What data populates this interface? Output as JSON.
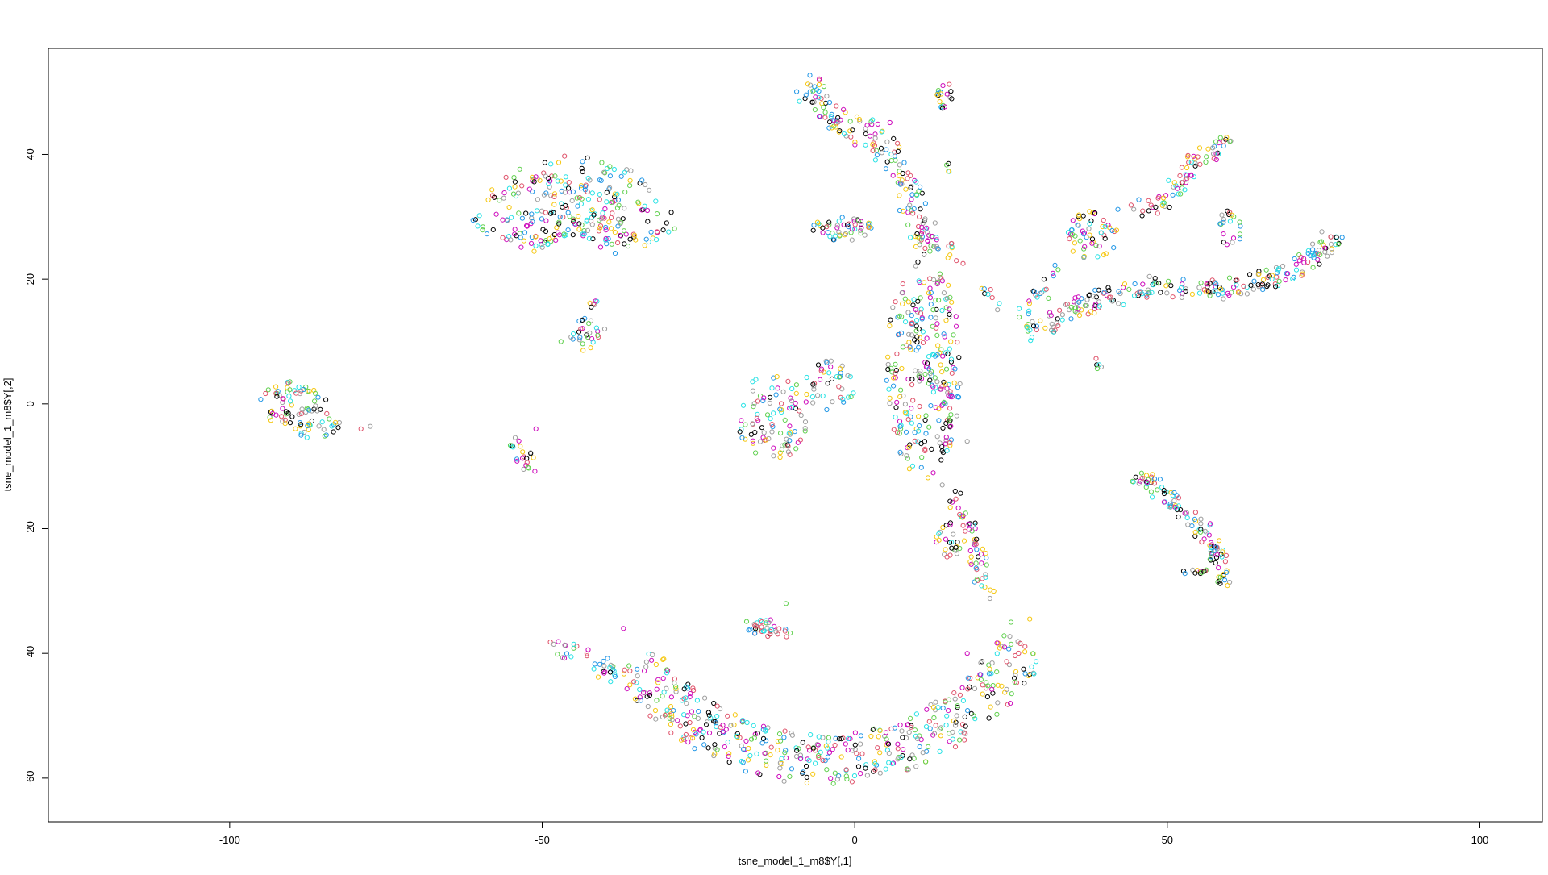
{
  "chart_data": {
    "type": "scatter",
    "title": "",
    "xlabel": "tsne_model_1_m8$Y[,1]",
    "ylabel": "tsne_model_1_m8$Y[,2]",
    "xlim": [
      -129,
      110
    ],
    "ylim": [
      -67,
      57
    ],
    "xticks": [
      -100,
      -50,
      0,
      50,
      100
    ],
    "yticks": [
      -60,
      -40,
      -20,
      0,
      20,
      40
    ],
    "xtick_labels": [
      "-100",
      "-50",
      "0",
      "50",
      "100"
    ],
    "ytick_labels": [
      "-60",
      "-40",
      "-20",
      "0",
      "20",
      "40"
    ],
    "grid": false,
    "legend": "none",
    "marker": "open-circle",
    "colors": [
      "#000000",
      "#DF536B",
      "#61D04F",
      "#2297E6",
      "#28E2E5",
      "#CD0BBC",
      "#F5C710",
      "#9E9E9E"
    ],
    "clusters": [
      {
        "shape": "blob",
        "cx": -89,
        "cy": -1,
        "rx": 7,
        "ry": 4,
        "angle": -25,
        "n": 90
      },
      {
        "shape": "points",
        "pts": [
          [
            -79,
            -4
          ],
          [
            -77.5,
            -3.6
          ]
        ]
      },
      {
        "shape": "arc",
        "cx": -45,
        "cy": 22,
        "r_in": 5,
        "r_out": 18,
        "a0": 15,
        "a1": 160,
        "n": 280
      },
      {
        "shape": "blob",
        "cx": -43,
        "cy": 11,
        "rx": 2.5,
        "ry": 3,
        "angle": 0,
        "n": 25
      },
      {
        "shape": "blob",
        "cx": -41,
        "cy": 16,
        "rx": 1.5,
        "ry": 1,
        "angle": 0,
        "n": 6
      },
      {
        "shape": "blob",
        "cx": -53,
        "cy": -8,
        "rx": 1.5,
        "ry": 4,
        "angle": 30,
        "n": 22
      },
      {
        "shape": "points",
        "pts": [
          [
            -47,
            10
          ],
          [
            -51,
            -4
          ],
          [
            -40,
            12
          ]
        ]
      },
      {
        "shape": "blob",
        "cx": -13,
        "cy": -2,
        "rx": 6,
        "ry": 7,
        "angle": 0,
        "n": 90
      },
      {
        "shape": "blob",
        "cx": -4,
        "cy": 3,
        "rx": 4,
        "ry": 4,
        "angle": 0,
        "n": 40
      },
      {
        "shape": "poly",
        "path": [
          [
            -8,
            51
          ],
          [
            -3,
            45
          ],
          [
            4,
            43
          ],
          [
            8,
            36
          ],
          [
            10,
            30
          ],
          [
            12,
            25
          ]
        ],
        "spread": 2.2,
        "n": 170
      },
      {
        "shape": "blob",
        "cx": -2,
        "cy": 28,
        "rx": 5,
        "ry": 2,
        "angle": 0,
        "n": 50
      },
      {
        "shape": "blob",
        "cx": 11,
        "cy": 6,
        "rx": 6,
        "ry": 18,
        "angle": 0,
        "n": 270
      },
      {
        "shape": "poly",
        "path": [
          [
            13,
            25
          ],
          [
            17,
            23
          ],
          [
            19,
            20
          ],
          [
            22,
            17
          ],
          [
            24,
            15
          ]
        ],
        "spread": 0.7,
        "n": 14
      },
      {
        "shape": "blob",
        "cx": 14.5,
        "cy": 49,
        "rx": 1.5,
        "ry": 2.5,
        "angle": 0,
        "n": 18
      },
      {
        "shape": "blob",
        "cx": 15,
        "cy": 38,
        "rx": 0.4,
        "ry": 0.8,
        "angle": 0,
        "n": 4
      },
      {
        "shape": "blob",
        "cx": 15.5,
        "cy": 25.5,
        "rx": 1,
        "ry": 1,
        "angle": 0,
        "n": 5
      },
      {
        "shape": "poly",
        "path": [
          [
            16,
            -15
          ],
          [
            18,
            -20
          ],
          [
            20,
            -25
          ],
          [
            21,
            -30
          ]
        ],
        "spread": 1.5,
        "n": 55
      },
      {
        "shape": "blob",
        "cx": 15,
        "cy": -22,
        "rx": 2,
        "ry": 3,
        "angle": 0,
        "n": 25
      },
      {
        "shape": "poly",
        "path": [
          [
            28,
            11
          ],
          [
            35,
            15
          ],
          [
            40,
            17
          ],
          [
            48,
            19
          ],
          [
            56,
            18
          ],
          [
            62,
            19
          ],
          [
            70,
            21
          ],
          [
            77,
            27
          ]
        ],
        "spread": 1.6,
        "n": 240
      },
      {
        "shape": "poly",
        "path": [
          [
            43,
            30
          ],
          [
            50,
            33
          ],
          [
            54,
            38
          ],
          [
            60,
            43
          ]
        ],
        "spread": 1.4,
        "n": 75
      },
      {
        "shape": "blob",
        "cx": 38,
        "cy": 27,
        "rx": 4,
        "ry": 4,
        "angle": 0,
        "n": 55
      },
      {
        "shape": "poly",
        "path": [
          [
            26,
            14
          ],
          [
            30,
            18
          ],
          [
            33,
            22
          ]
        ],
        "spread": 1.2,
        "n": 20
      },
      {
        "shape": "blob",
        "cx": 60,
        "cy": 28,
        "rx": 2,
        "ry": 3,
        "angle": 0,
        "n": 20
      },
      {
        "shape": "blob",
        "cx": 39,
        "cy": 6.5,
        "rx": 0.5,
        "ry": 1.3,
        "angle": 0,
        "n": 5
      },
      {
        "shape": "poly",
        "path": [
          [
            45,
            -11
          ],
          [
            50,
            -15
          ],
          [
            55,
            -19
          ],
          [
            58,
            -24
          ],
          [
            59,
            -29
          ]
        ],
        "spread": 1.3,
        "n": 110
      },
      {
        "shape": "blob",
        "cx": 55,
        "cy": -27,
        "rx": 3,
        "ry": 0.5,
        "angle": 0,
        "n": 12
      },
      {
        "shape": "arc",
        "cx": -5,
        "cy": -20,
        "r_in": 33,
        "r_out": 41,
        "a0": 215,
        "a1": 330,
        "n": 460
      },
      {
        "shape": "blob",
        "cx": -14,
        "cy": -36,
        "rx": 4,
        "ry": 1.5,
        "angle": -15,
        "n": 35
      },
      {
        "shape": "poly",
        "path": [
          [
            -48,
            -39
          ],
          [
            -42,
            -41
          ],
          [
            -38,
            -44
          ]
        ],
        "spread": 1.3,
        "n": 35
      },
      {
        "shape": "points",
        "pts": [
          [
            28,
            -34.5
          ],
          [
            25,
            -35
          ],
          [
            18,
            -40
          ],
          [
            -37,
            -36
          ],
          [
            -11,
            -32
          ],
          [
            14,
            -13
          ],
          [
            18,
            -6
          ]
        ]
      }
    ]
  }
}
